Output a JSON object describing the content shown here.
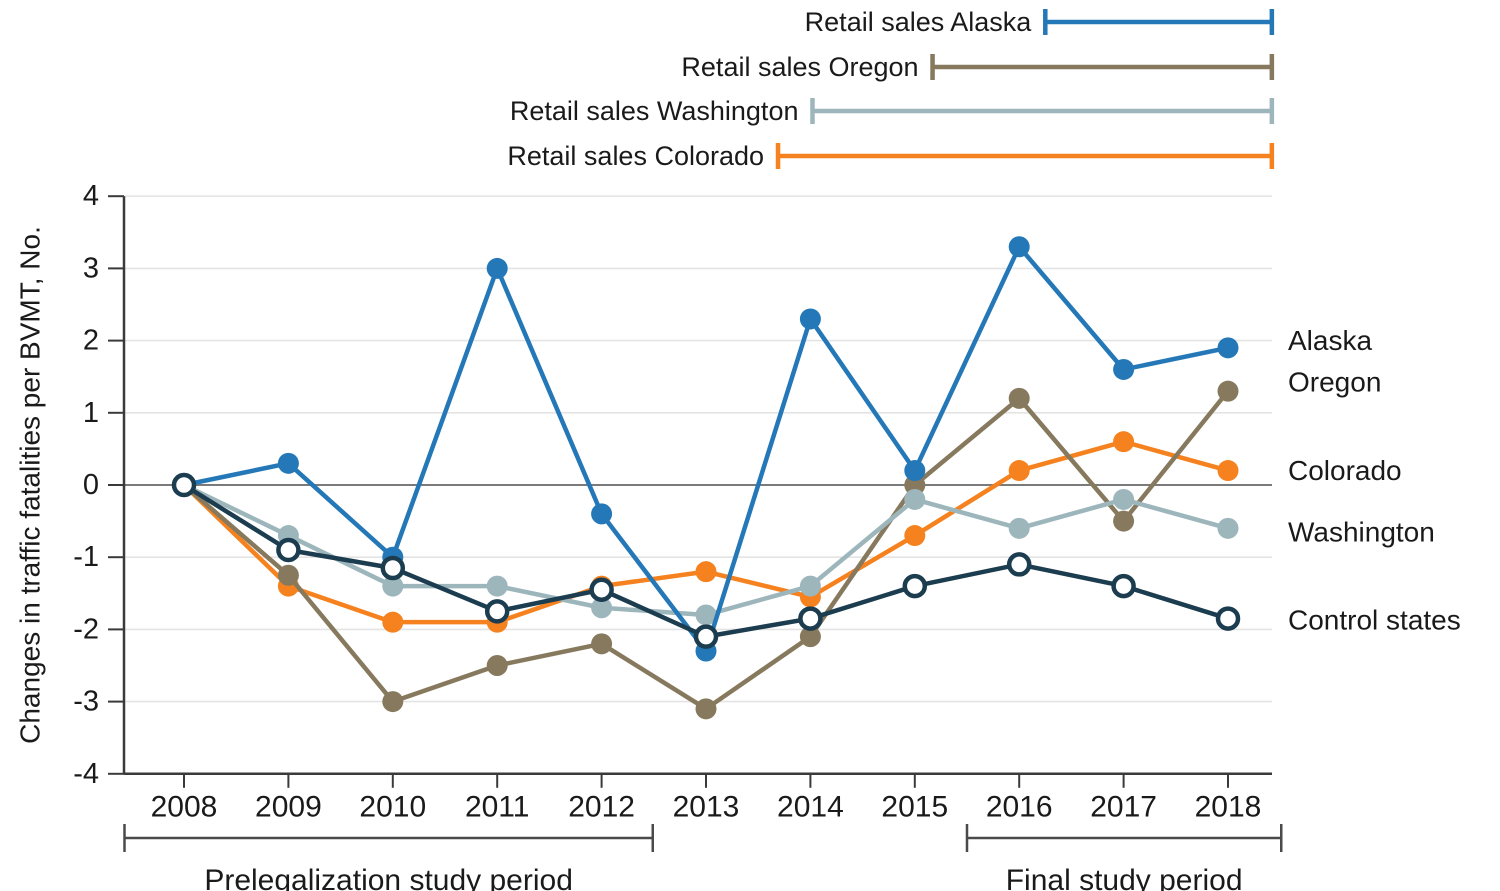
{
  "figure": {
    "background": "#ffffff",
    "text_color": "#1a1a1a",
    "grid_color": "#e4e4e4",
    "zero_line_color": "#7a7a7a",
    "axis_color": "#3a3a3a",
    "bracket_color": "#4a4a4a"
  },
  "chart_data": {
    "type": "line",
    "title": "",
    "xlabel": "",
    "ylabel": "Changes in traffic fatalities per BVMT, No.",
    "ylim": [
      -4,
      4
    ],
    "ytick_step": 1,
    "grid": true,
    "x": [
      2008,
      2009,
      2010,
      2011,
      2012,
      2013,
      2014,
      2015,
      2016,
      2017,
      2018
    ],
    "ytick_labels": [
      "4",
      "3",
      "2",
      "1",
      "0",
      "-1",
      "-2",
      "-3",
      "-4"
    ],
    "series": [
      {
        "name": "Alaska",
        "color": "#2478b7",
        "marker": "filled",
        "values": [
          0,
          0.3,
          -1.0,
          3.0,
          -0.4,
          -2.3,
          2.3,
          0.2,
          3.3,
          1.6,
          1.9
        ]
      },
      {
        "name": "Oregon",
        "color": "#86795d",
        "marker": "filled",
        "values": [
          0,
          -1.25,
          -3.0,
          -2.5,
          -2.2,
          -3.1,
          -2.1,
          0.0,
          1.2,
          -0.5,
          1.3
        ]
      },
      {
        "name": "Washington",
        "color": "#9cb6bc",
        "marker": "filled",
        "values": [
          0,
          -0.7,
          -1.4,
          -1.4,
          -1.7,
          -1.8,
          -1.4,
          -0.2,
          -0.6,
          -0.2,
          -0.6
        ]
      },
      {
        "name": "Colorado",
        "color": "#f5821e",
        "marker": "filled",
        "values": [
          0,
          -1.4,
          -1.9,
          -1.9,
          -1.4,
          -1.2,
          -1.55,
          -0.7,
          0.2,
          0.6,
          0.2
        ]
      },
      {
        "name": "Control states",
        "color": "#1c3d4f",
        "marker": "open",
        "values": [
          0,
          -0.9,
          -1.15,
          -1.75,
          -1.45,
          -2.1,
          -1.85,
          -1.4,
          -1.1,
          -1.4,
          -1.85
        ]
      }
    ],
    "side_labels": [
      {
        "text": "Alaska",
        "at_value": 2.0
      },
      {
        "text": "Oregon",
        "at_value": 1.43
      },
      {
        "text": "Colorado",
        "at_value": 0.2
      },
      {
        "text": "Washington",
        "at_value": -0.65
      },
      {
        "text": "Control states",
        "at_value": -1.87
      }
    ],
    "legend": {
      "position": "top-right",
      "items": [
        {
          "label": "Retail sales Alaska",
          "color": "#2478b7",
          "from_year": 2016.25,
          "to_year": 2018.42
        },
        {
          "label": "Retail sales Oregon",
          "color": "#86795d",
          "from_year": 2015.17,
          "to_year": 2018.42
        },
        {
          "label": "Retail sales Washington",
          "color": "#9cb6bc",
          "from_year": 2014.02,
          "to_year": 2018.42
        },
        {
          "label": "Retail sales Colorado",
          "color": "#f5821e",
          "from_year": 2013.69,
          "to_year": 2018.42
        }
      ]
    },
    "period_brackets": [
      {
        "label": "Prelegalization study period",
        "from_year": 2007.43,
        "to_year": 2012.49
      },
      {
        "label": "Final study period",
        "from_year": 2015.5,
        "to_year": 2018.51
      }
    ]
  }
}
